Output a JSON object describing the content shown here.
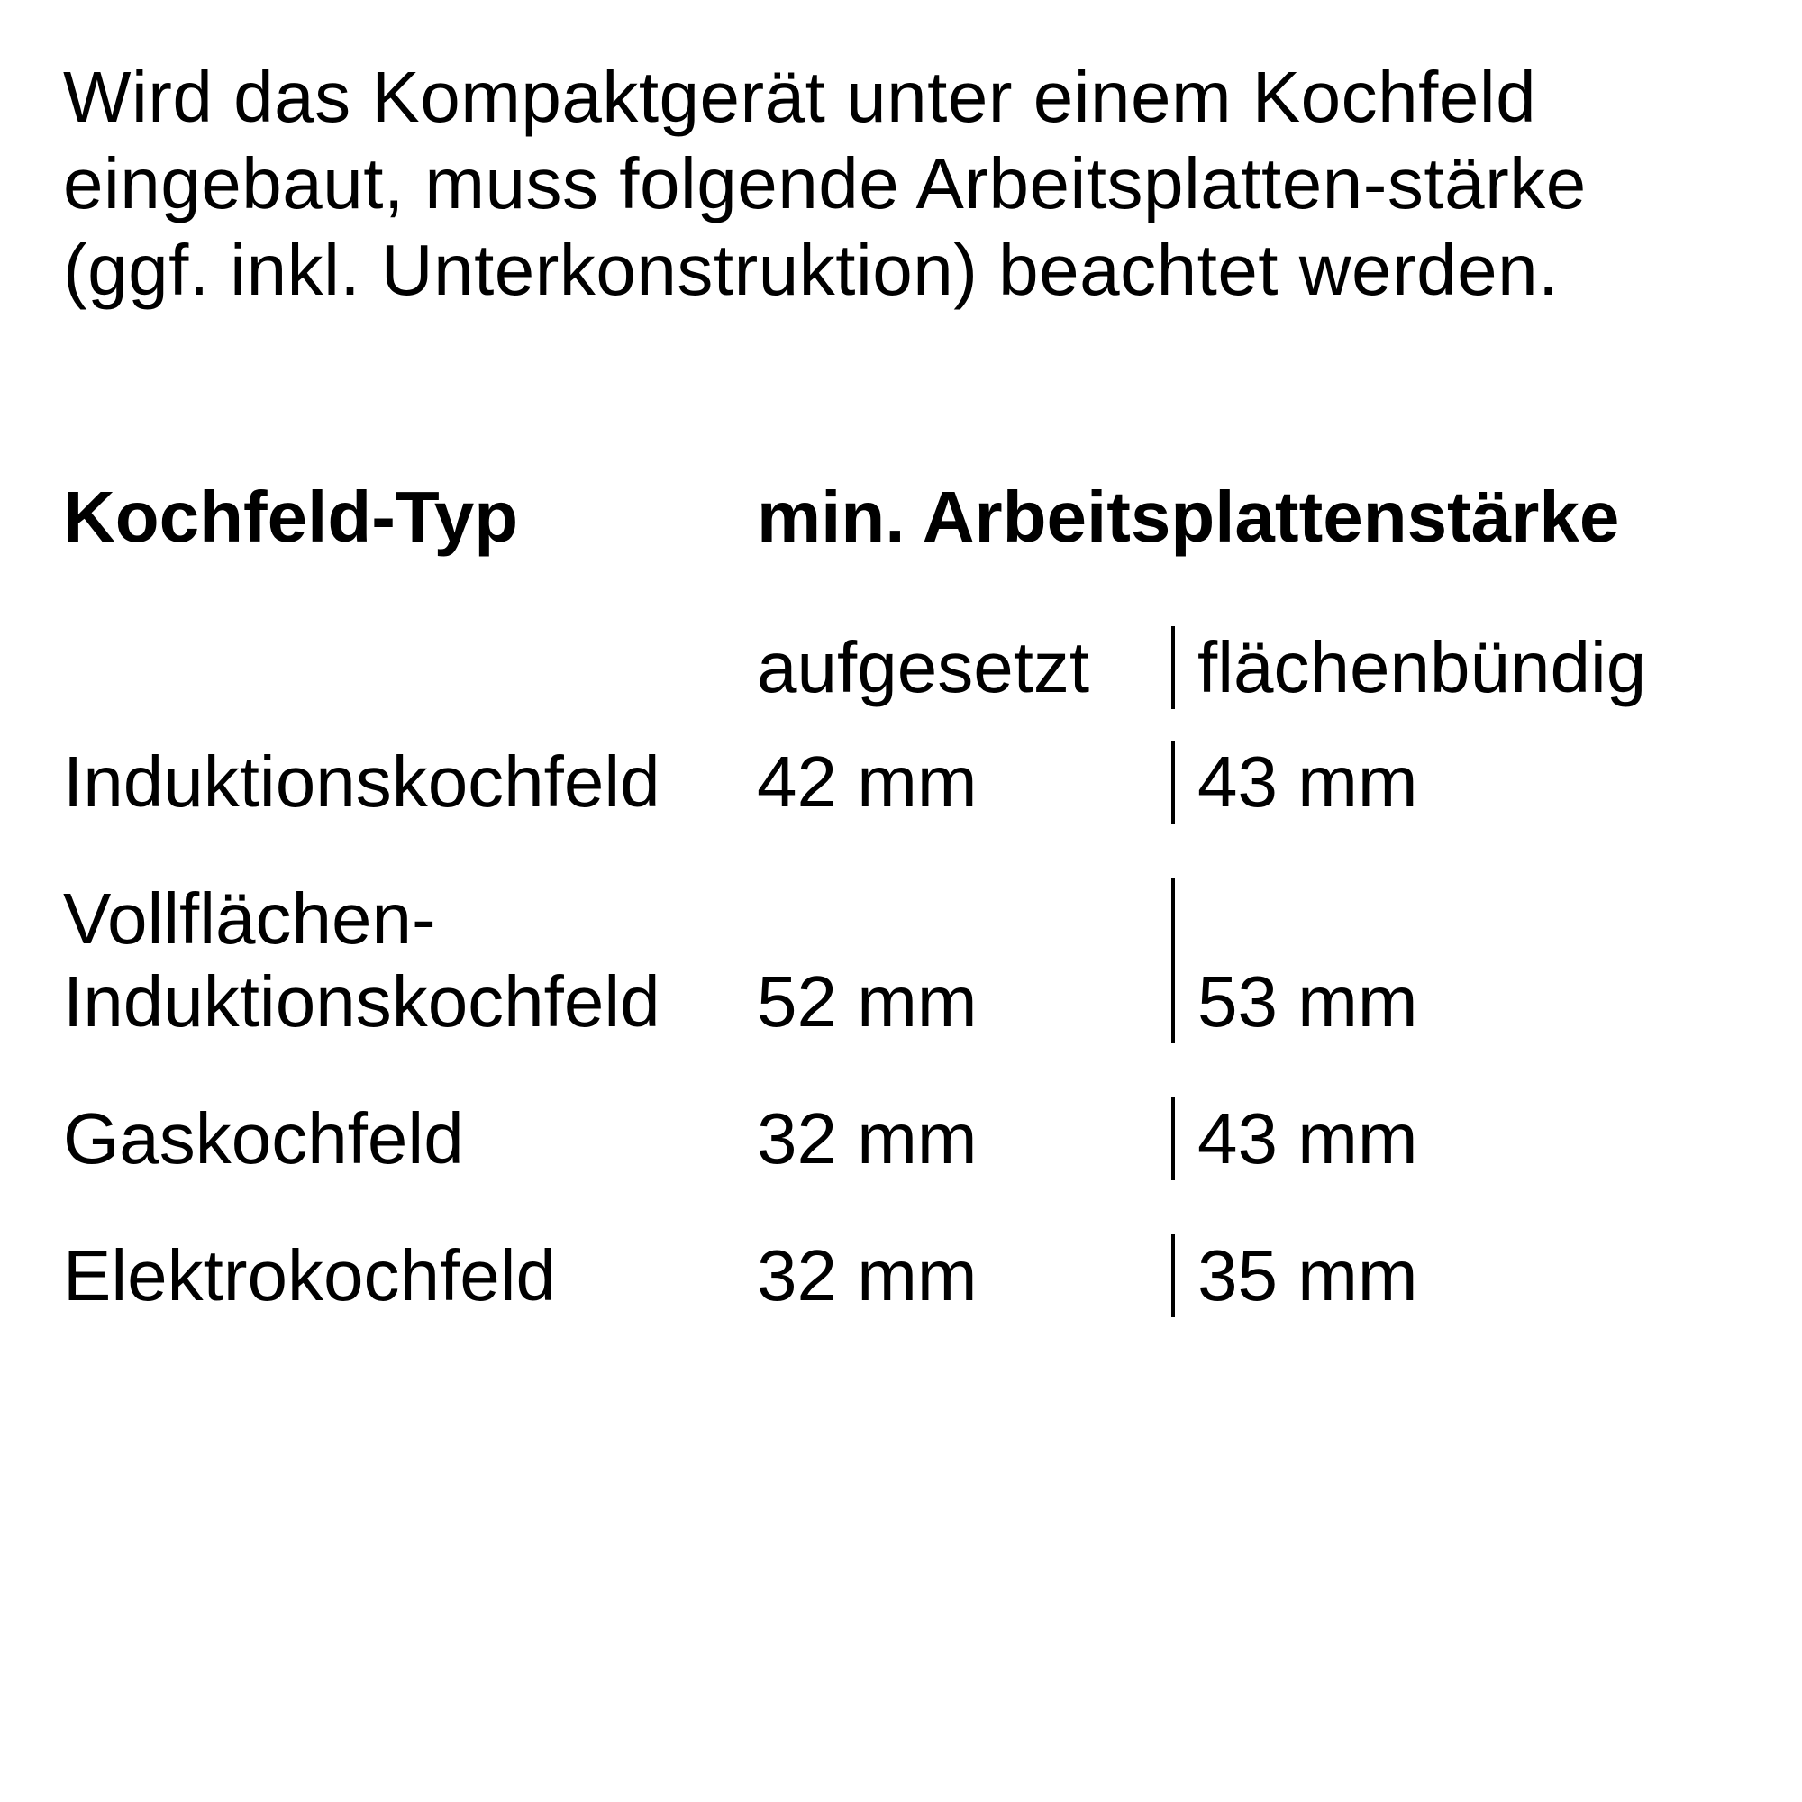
{
  "intro": "Wird das Kompaktgerät unter einem Kochfeld eingebaut, muss folgende Arbeitsplatten-stärke (ggf. inkl. Unterkonstruktion) beachtet werden.",
  "table": {
    "header_col1": "Kochfeld-Typ",
    "header_col2": "min. Arbeitsplattenstärke",
    "subheader_col2": "aufgesetzt",
    "subheader_col3": "flächenbündig",
    "rows": [
      {
        "type": "Induktionskochfeld",
        "aufgesetzt": "42 mm",
        "flaechenbuendig": "43 mm"
      },
      {
        "type": "Vollflächen-\nInduktionskochfeld",
        "aufgesetzt": "52 mm",
        "flaechenbuendig": "53 mm"
      },
      {
        "type": "Gaskochfeld",
        "aufgesetzt": "32 mm",
        "flaechenbuendig": "43 mm"
      },
      {
        "type": "Elektrokochfeld",
        "aufgesetzt": "32 mm",
        "flaechenbuendig": "35 mm"
      }
    ]
  }
}
